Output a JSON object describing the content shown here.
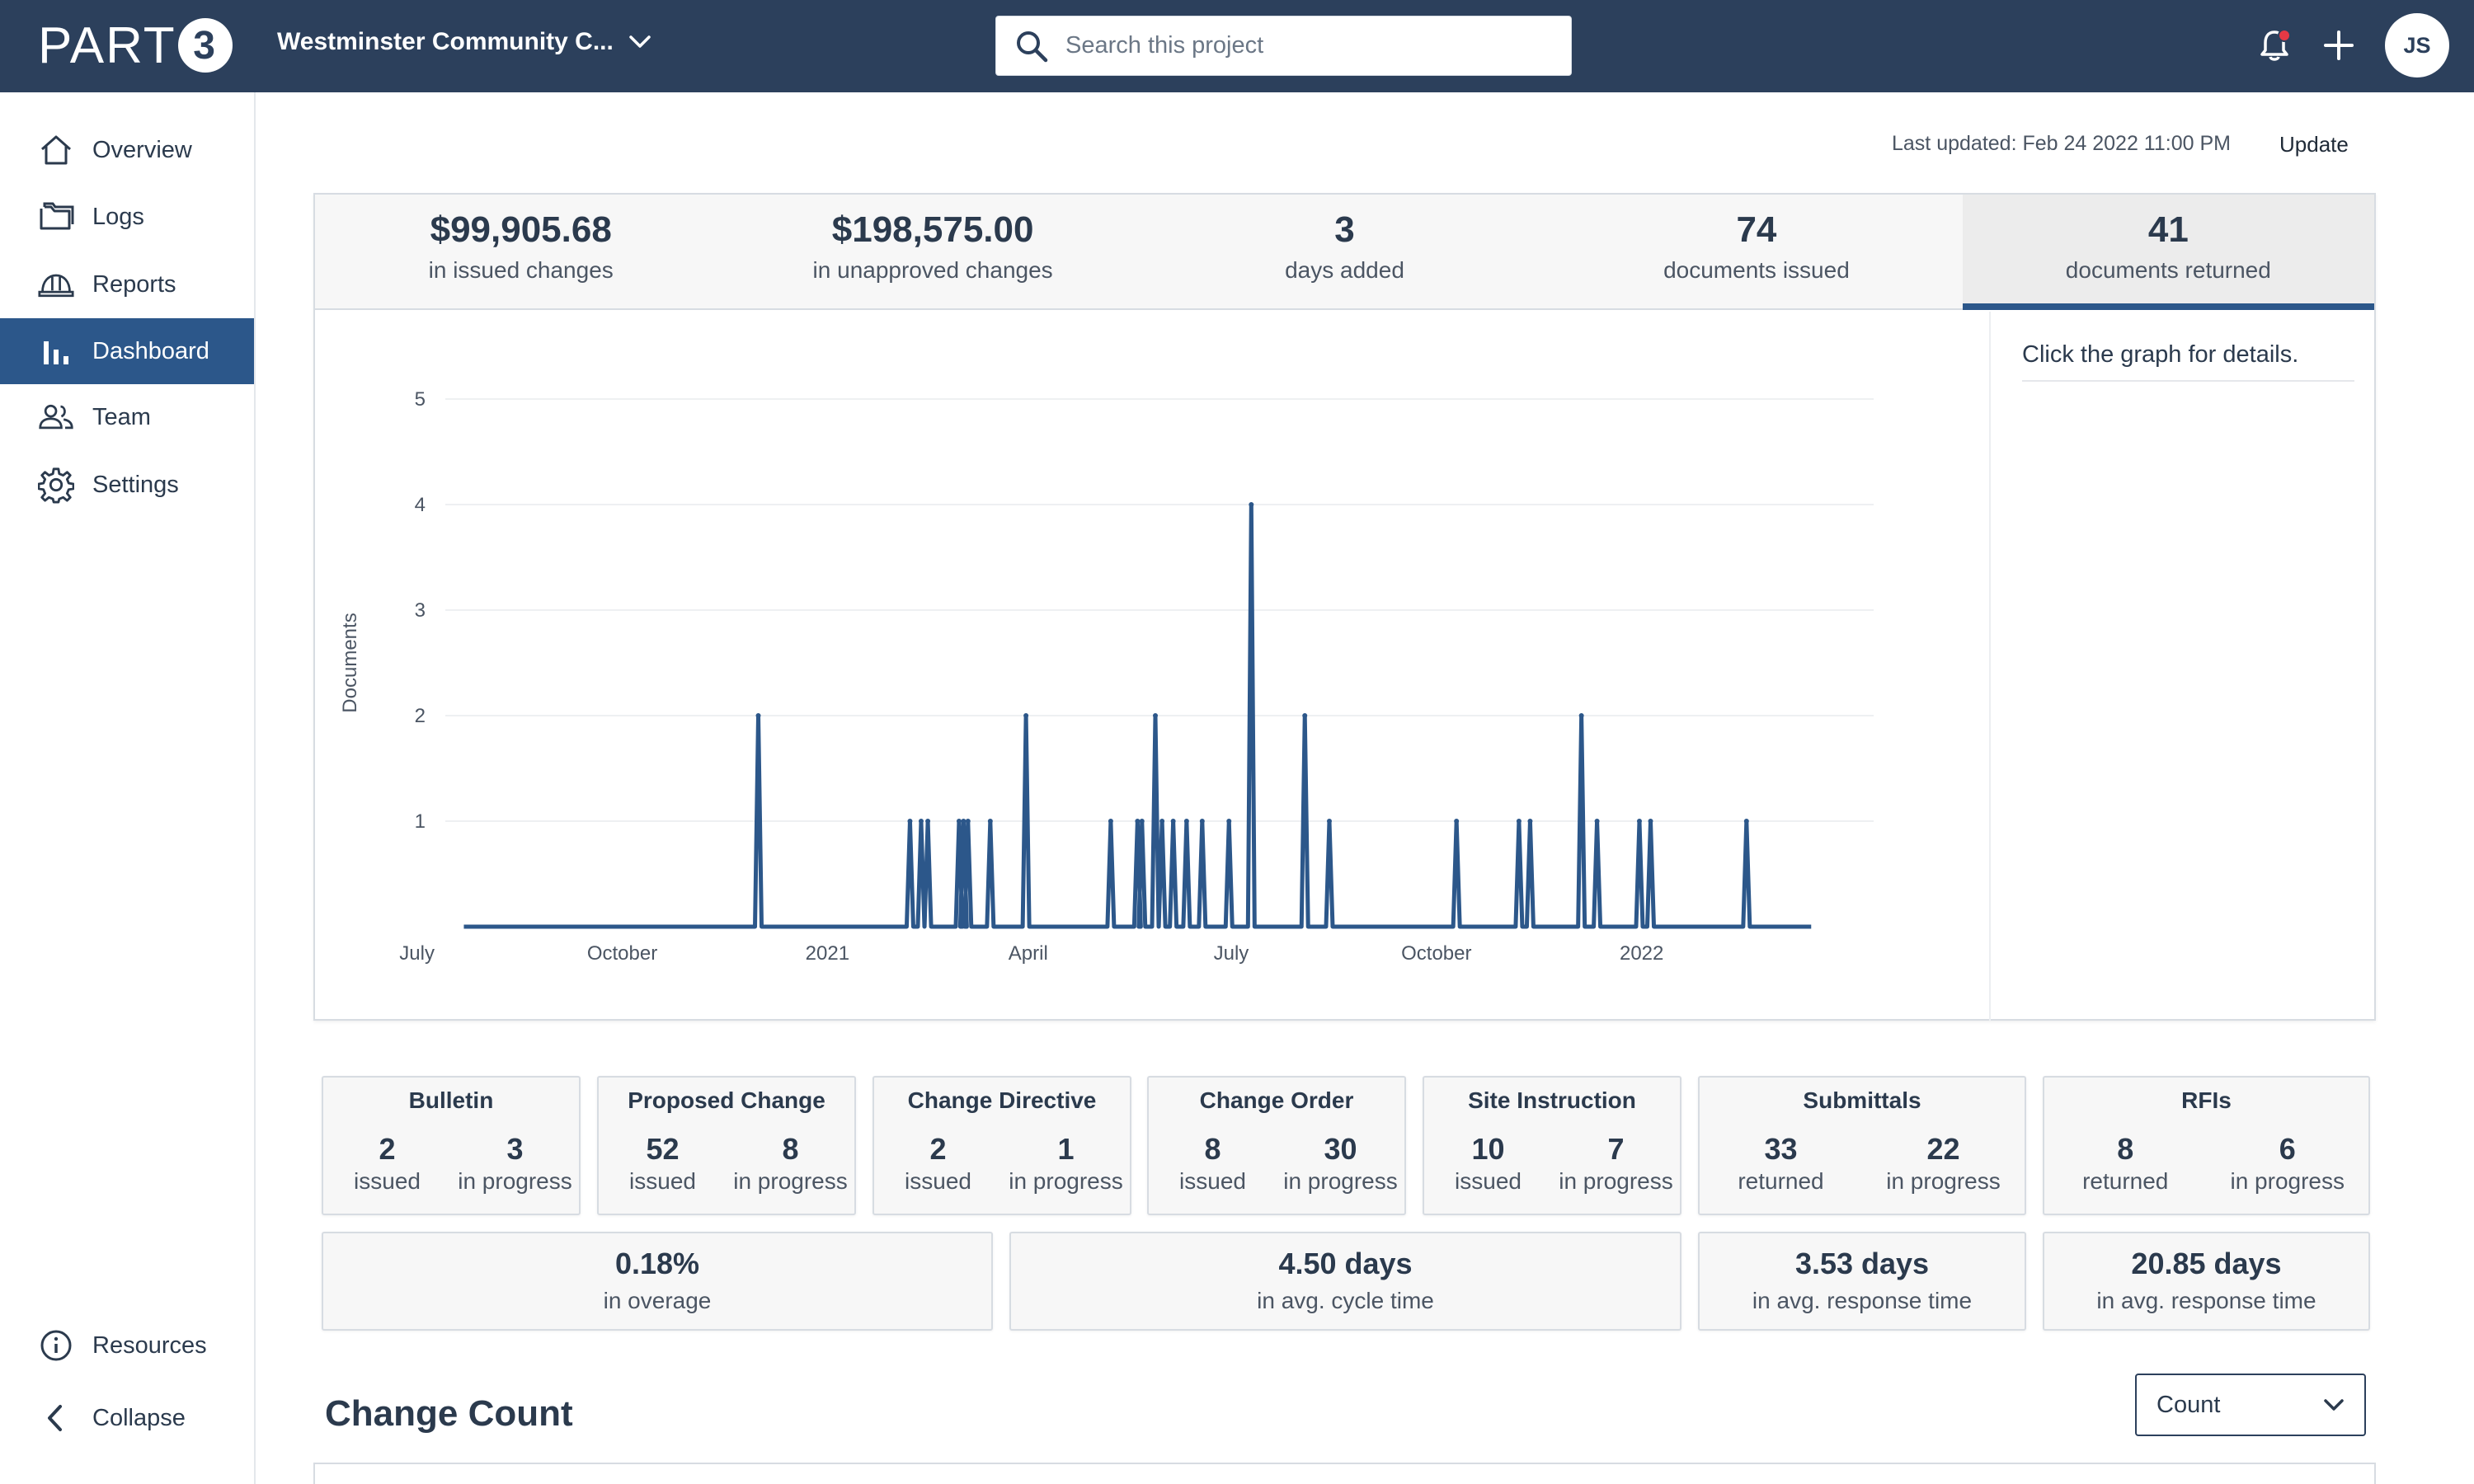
{
  "header": {
    "logo_text": "PART",
    "logo_mark": "3",
    "project_name": "Westminster Community C...",
    "search_placeholder": "Search this project",
    "avatar_initials": "JS"
  },
  "sidebar": {
    "items": [
      {
        "label": "Overview",
        "icon": "home-icon"
      },
      {
        "label": "Logs",
        "icon": "folder-icon"
      },
      {
        "label": "Reports",
        "icon": "hard-hat-icon"
      },
      {
        "label": "Dashboard",
        "icon": "bar-chart-icon",
        "active": true
      },
      {
        "label": "Team",
        "icon": "people-icon"
      },
      {
        "label": "Settings",
        "icon": "gear-icon"
      }
    ],
    "bottom": [
      {
        "label": "Resources",
        "icon": "info-icon"
      },
      {
        "label": "Collapse",
        "icon": "chevron-left-icon"
      }
    ]
  },
  "toolbar": {
    "last_updated": "Last updated: Feb 24 2022 11:00 PM",
    "update_label": "Update"
  },
  "kpis": [
    {
      "value": "$99,905.68",
      "label": "in issued changes"
    },
    {
      "value": "$198,575.00",
      "label": "in unapproved changes"
    },
    {
      "value": "3",
      "label": "days added"
    },
    {
      "value": "74",
      "label": "documents issued"
    },
    {
      "value": "41",
      "label": "documents returned",
      "active": true
    }
  ],
  "chart_hint": "Click the graph for details.",
  "chart_data": {
    "type": "line",
    "ylabel": "Documents",
    "xlabel": "",
    "ylim": [
      0,
      5
    ],
    "yticks": [
      "1",
      "2",
      "3",
      "4",
      "5"
    ],
    "xticks": [
      "July",
      "October",
      "2021",
      "April",
      "July",
      "October",
      "2022"
    ],
    "xtick_dates": [
      "2020-07-01",
      "2020-10-01",
      "2021-01-01",
      "2021-04-01",
      "2021-07-01",
      "2021-10-01",
      "2022-01-01"
    ],
    "x_range": [
      "2020-07-10",
      "2022-04-15"
    ],
    "series": [
      {
        "color": "#2c578a",
        "points": [
          {
            "x": "2020-12-01",
            "y": 2
          },
          {
            "x": "2021-02-07",
            "y": 1
          },
          {
            "x": "2021-02-12",
            "y": 1
          },
          {
            "x": "2021-02-15",
            "y": 1
          },
          {
            "x": "2021-03-01",
            "y": 1
          },
          {
            "x": "2021-03-03",
            "y": 1
          },
          {
            "x": "2021-03-05",
            "y": 1
          },
          {
            "x": "2021-03-15",
            "y": 1
          },
          {
            "x": "2021-03-31",
            "y": 2
          },
          {
            "x": "2021-05-08",
            "y": 1
          },
          {
            "x": "2021-05-20",
            "y": 1
          },
          {
            "x": "2021-05-22",
            "y": 1
          },
          {
            "x": "2021-05-28",
            "y": 2
          },
          {
            "x": "2021-05-31",
            "y": 1
          },
          {
            "x": "2021-06-05",
            "y": 1
          },
          {
            "x": "2021-06-11",
            "y": 1
          },
          {
            "x": "2021-06-18",
            "y": 1
          },
          {
            "x": "2021-06-30",
            "y": 1
          },
          {
            "x": "2021-07-10",
            "y": 4
          },
          {
            "x": "2021-08-03",
            "y": 2
          },
          {
            "x": "2021-08-14",
            "y": 1
          },
          {
            "x": "2021-10-10",
            "y": 1
          },
          {
            "x": "2021-11-07",
            "y": 1
          },
          {
            "x": "2021-11-12",
            "y": 1
          },
          {
            "x": "2021-12-05",
            "y": 2
          },
          {
            "x": "2021-12-12",
            "y": 1
          },
          {
            "x": "2021-12-31",
            "y": 1
          },
          {
            "x": "2022-01-05",
            "y": 1
          },
          {
            "x": "2022-02-17",
            "y": 1
          }
        ]
      }
    ]
  },
  "stat_cards": [
    {
      "title": "Bulletin",
      "cols": [
        {
          "num": "2",
          "label": "issued"
        },
        {
          "num": "3",
          "label": "in progress"
        }
      ]
    },
    {
      "title": "Proposed Change",
      "cols": [
        {
          "num": "52",
          "label": "issued"
        },
        {
          "num": "8",
          "label": "in progress"
        }
      ]
    },
    {
      "title": "Change Directive",
      "cols": [
        {
          "num": "2",
          "label": "issued"
        },
        {
          "num": "1",
          "label": "in progress"
        }
      ]
    },
    {
      "title": "Change Order",
      "cols": [
        {
          "num": "8",
          "label": "issued"
        },
        {
          "num": "30",
          "label": "in progress"
        }
      ]
    },
    {
      "title": "Site Instruction",
      "cols": [
        {
          "num": "10",
          "label": "issued"
        },
        {
          "num": "7",
          "label": "in progress"
        }
      ]
    },
    {
      "title": "Submittals",
      "cols": [
        {
          "num": "33",
          "label": "returned"
        },
        {
          "num": "22",
          "label": "in progress"
        }
      ]
    },
    {
      "title": "RFIs",
      "cols": [
        {
          "num": "8",
          "label": "returned"
        },
        {
          "num": "6",
          "label": "in progress"
        }
      ]
    }
  ],
  "wide_cards": [
    {
      "num": "0.18%",
      "label": "in overage"
    },
    {
      "num": "4.50 days",
      "label": "in avg. cycle time"
    },
    {
      "num": "3.53 days",
      "label": "in avg. response time"
    },
    {
      "num": "20.85 days",
      "label": "in avg. response time"
    }
  ],
  "change_count": {
    "title": "Change Count",
    "select_value": "Count"
  }
}
